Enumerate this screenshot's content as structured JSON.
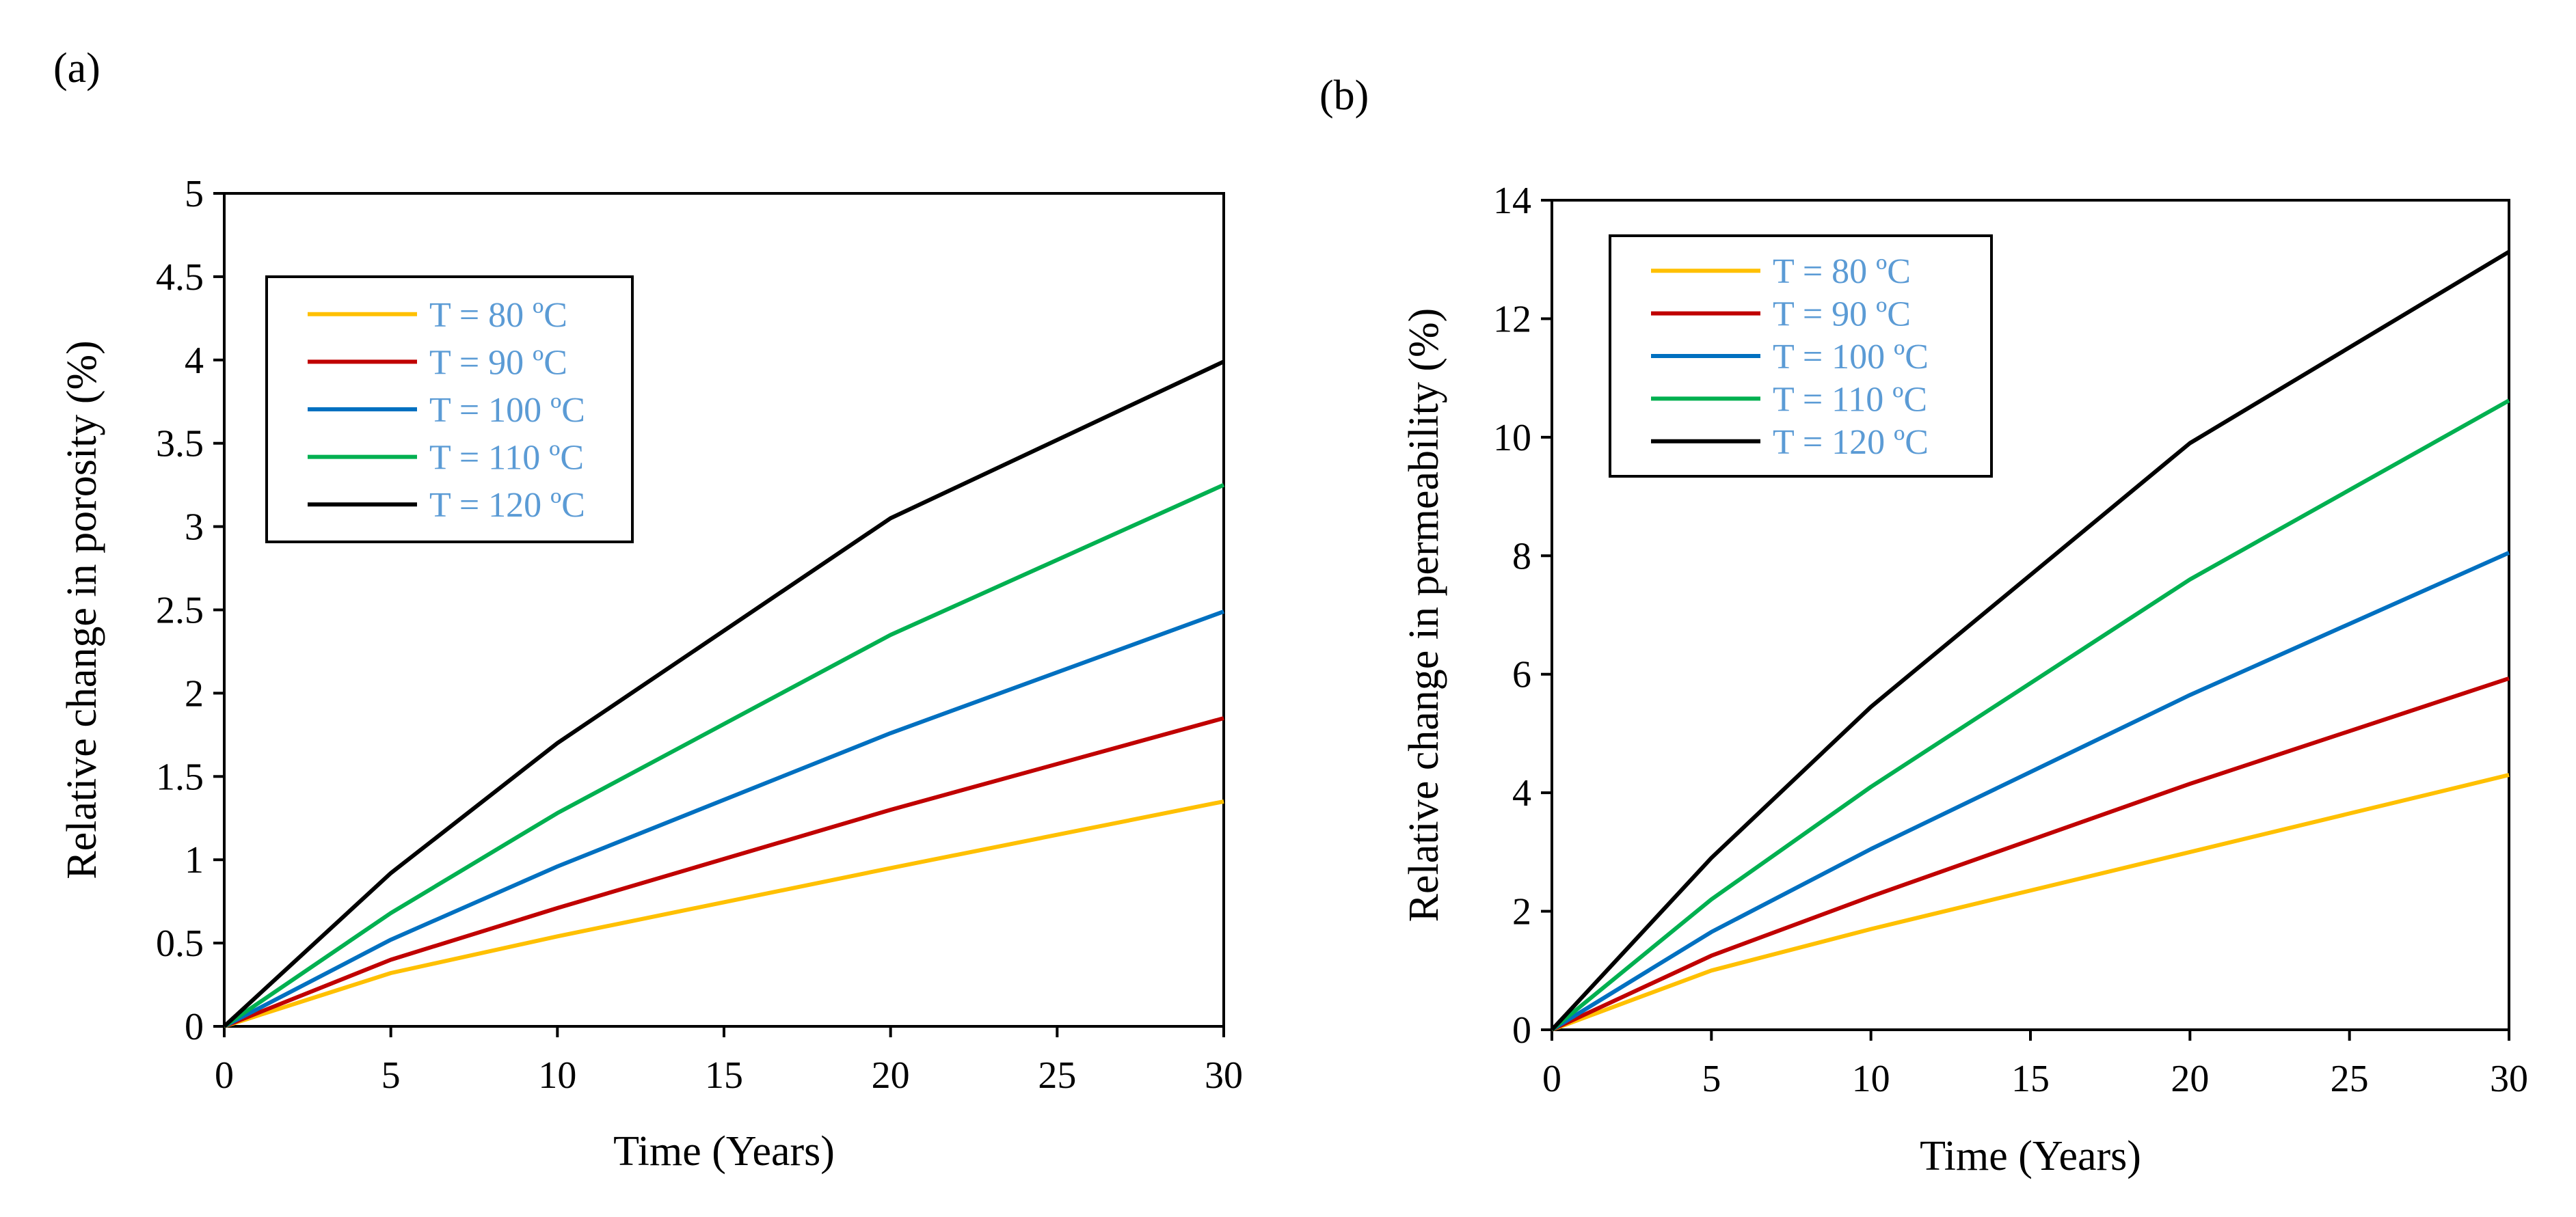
{
  "colors": {
    "T80": "#ffc000",
    "T90": "#c00000",
    "T100": "#0070c0",
    "T110": "#00b050",
    "T120": "#000000",
    "legend_text": "#5b9bd5",
    "axis": "#000000"
  },
  "chart_data": [
    {
      "panel_label": "(a)",
      "type": "line",
      "title": "",
      "xlabel": "Time (Years)",
      "ylabel": "Relative change in porosity (%)",
      "xlim": [
        0,
        30
      ],
      "ylim": [
        0,
        5
      ],
      "x_ticks": [
        "0",
        "5",
        "10",
        "15",
        "20",
        "25",
        "30"
      ],
      "y_ticks": [
        "0",
        "0.5",
        "1",
        "1.5",
        "2",
        "2.5",
        "3",
        "3.5",
        "4",
        "4.5",
        "5"
      ],
      "grid": false,
      "legend_position": "top-left",
      "x": [
        0,
        5,
        10,
        20,
        30
      ],
      "series": [
        {
          "name": "T = 80 ºC",
          "color_key": "T80",
          "values": [
            0,
            0.32,
            0.54,
            0.95,
            1.35
          ]
        },
        {
          "name": "T = 90 ºC",
          "color_key": "T90",
          "values": [
            0,
            0.4,
            0.71,
            1.3,
            1.85
          ]
        },
        {
          "name": "T = 100 ºC",
          "color_key": "T100",
          "values": [
            0,
            0.52,
            0.96,
            1.76,
            2.49
          ]
        },
        {
          "name": "T = 110 ºC",
          "color_key": "T110",
          "values": [
            0,
            0.68,
            1.28,
            2.35,
            3.25
          ]
        },
        {
          "name": "T = 120 ºC",
          "color_key": "T120",
          "values": [
            0,
            0.92,
            1.7,
            3.05,
            3.99
          ]
        }
      ]
    },
    {
      "panel_label": "(b)",
      "type": "line",
      "title": "",
      "xlabel": "Time (Years)",
      "ylabel": "Relative change in permeability (%)",
      "xlim": [
        0,
        30
      ],
      "ylim": [
        0,
        14
      ],
      "x_ticks": [
        "0",
        "5",
        "10",
        "15",
        "20",
        "25",
        "30"
      ],
      "y_ticks": [
        "0",
        "2",
        "4",
        "6",
        "8",
        "10",
        "12",
        "14"
      ],
      "grid": false,
      "legend_position": "top-left",
      "x": [
        0,
        5,
        10,
        20,
        30
      ],
      "series": [
        {
          "name": "T = 80 ºC",
          "color_key": "T80",
          "values": [
            0,
            1.0,
            1.7,
            3.0,
            4.3
          ]
        },
        {
          "name": "T = 90 ºC",
          "color_key": "T90",
          "values": [
            0,
            1.25,
            2.25,
            4.15,
            5.93
          ]
        },
        {
          "name": "T = 100 ºC",
          "color_key": "T100",
          "values": [
            0,
            1.65,
            3.05,
            5.65,
            8.05
          ]
        },
        {
          "name": "T = 110 ºC",
          "color_key": "T110",
          "values": [
            0,
            2.2,
            4.1,
            7.6,
            10.62
          ]
        },
        {
          "name": "T = 120 ºC",
          "color_key": "T120",
          "values": [
            0,
            2.9,
            5.45,
            9.9,
            13.13
          ]
        }
      ]
    }
  ]
}
